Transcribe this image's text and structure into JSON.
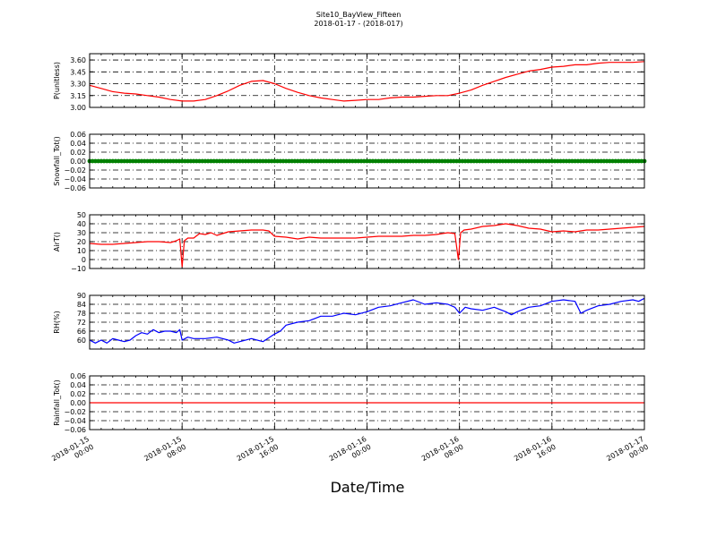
{
  "figure": {
    "title": "Site10_BayView_Fifteen",
    "subtitle": "2018-01-17 - (2018-017)",
    "xlabel": "Date/Time"
  },
  "x_ticks": [
    {
      "h": 0,
      "line1": "2018-01-15",
      "line2": "00:00"
    },
    {
      "h": 8,
      "line1": "2018-01-15",
      "line2": "08:00"
    },
    {
      "h": 16,
      "line1": "2018-01-15",
      "line2": "16:00"
    },
    {
      "h": 24,
      "line1": "2018-01-16",
      "line2": "00:00"
    },
    {
      "h": 32,
      "line1": "2018-01-16",
      "line2": "08:00"
    },
    {
      "h": 40,
      "line1": "2018-01-16",
      "line2": "16:00"
    },
    {
      "h": 48,
      "line1": "2018-01-17",
      "line2": "00:00"
    }
  ],
  "chart_data": [
    {
      "type": "line",
      "ylabel": "P(unitless)",
      "ylim": [
        3.0,
        3.68
      ],
      "yticks": [
        3.0,
        3.15,
        3.3,
        3.45,
        3.6
      ],
      "ytick_labels": [
        "3.00",
        "3.15",
        "3.30",
        "3.45",
        "3.60"
      ],
      "grid": true,
      "series": [
        {
          "color": "#ff0000",
          "style": "line",
          "x": [
            0,
            0.5,
            1,
            2,
            3,
            4,
            5,
            6,
            7,
            8,
            9,
            10,
            11,
            12,
            13,
            14,
            15,
            16,
            17,
            18,
            19,
            20,
            21,
            22,
            23,
            24,
            25,
            26,
            27,
            28,
            29,
            30,
            31,
            32,
            33,
            34,
            35,
            36,
            37,
            38,
            39,
            40,
            41,
            42,
            43,
            44,
            45,
            46,
            47,
            48
          ],
          "y": [
            3.28,
            3.26,
            3.24,
            3.2,
            3.18,
            3.17,
            3.15,
            3.13,
            3.1,
            3.08,
            3.08,
            3.1,
            3.15,
            3.21,
            3.28,
            3.33,
            3.34,
            3.3,
            3.24,
            3.19,
            3.15,
            3.12,
            3.1,
            3.08,
            3.09,
            3.1,
            3.1,
            3.12,
            3.13,
            3.13,
            3.14,
            3.15,
            3.15,
            3.18,
            3.22,
            3.28,
            3.33,
            3.38,
            3.42,
            3.46,
            3.48,
            3.51,
            3.52,
            3.54,
            3.54,
            3.56,
            3.57,
            3.57,
            3.57,
            3.58
          ]
        }
      ]
    },
    {
      "type": "scatter",
      "ylabel": "Snowfall_Tot()",
      "ylim": [
        -0.06,
        0.06
      ],
      "yticks": [
        -0.06,
        -0.04,
        -0.02,
        0.0,
        0.02,
        0.04,
        0.06
      ],
      "ytick_labels": [
        "−0.06",
        "−0.04",
        "−0.02",
        "0.00",
        "0.02",
        "0.04",
        "0.06"
      ],
      "grid": true,
      "series": [
        {
          "color": "#008000",
          "style": "dots",
          "x_start": 0,
          "x_end": 48,
          "x_step": 0.25,
          "constant": 0
        }
      ]
    },
    {
      "type": "line",
      "ylabel": "AirT()",
      "ylim": [
        -10,
        50
      ],
      "yticks": [
        -10,
        0,
        10,
        20,
        30,
        40,
        50
      ],
      "ytick_labels": [
        "−10",
        "0",
        "10",
        "20",
        "30",
        "40",
        "50"
      ],
      "grid": true,
      "series": [
        {
          "color": "#ff0000",
          "style": "line",
          "x": [
            0,
            1,
            2,
            3,
            4,
            5,
            6,
            7,
            7.5,
            7.8,
            8.0,
            8.2,
            8.5,
            9,
            9.5,
            10,
            10.5,
            11,
            12,
            13,
            14,
            15,
            15.5,
            16,
            17,
            18,
            19,
            20,
            21,
            22,
            23,
            24,
            25,
            26,
            27,
            28,
            29,
            30,
            31,
            31.6,
            31.9,
            32.1,
            32.4,
            33,
            34,
            35,
            36,
            37,
            38,
            39,
            40,
            41,
            42,
            43,
            44,
            45,
            46,
            47,
            48
          ],
          "y": [
            18,
            17,
            17,
            18,
            19,
            20,
            20,
            19,
            21,
            23,
            -8,
            21,
            24,
            24,
            29,
            28,
            30,
            27,
            31,
            32,
            33,
            33,
            32,
            26,
            25,
            23,
            25,
            24,
            24,
            24,
            24,
            25,
            26,
            26,
            26,
            27,
            27,
            28,
            30,
            29,
            0,
            30,
            33,
            34,
            37,
            38,
            40,
            38,
            35,
            34,
            31,
            32,
            31,
            33,
            33,
            34,
            35,
            36,
            37
          ]
        }
      ]
    },
    {
      "type": "line",
      "ylabel": "RH(%)",
      "ylim": [
        54,
        90
      ],
      "yticks": [
        60,
        66,
        72,
        78,
        84,
        90
      ],
      "ytick_labels": [
        "60",
        "66",
        "72",
        "78",
        "84",
        "90"
      ],
      "grid": true,
      "series": [
        {
          "color": "#0000ff",
          "style": "line",
          "x": [
            0,
            0.5,
            1,
            1.5,
            2,
            2.5,
            3,
            3.5,
            4,
            4.5,
            5,
            5.5,
            6,
            6.5,
            7,
            7.5,
            7.8,
            8,
            8.5,
            9,
            10,
            11,
            12,
            12.5,
            13,
            14,
            15,
            16,
            16.5,
            17,
            18,
            19,
            20,
            21,
            22,
            23,
            24,
            25,
            26,
            27,
            28,
            29,
            30,
            31,
            31.6,
            32,
            32.5,
            33,
            34,
            35,
            36,
            36.5,
            37,
            38,
            39,
            40,
            41,
            42,
            42.5,
            43,
            44,
            45,
            46,
            47,
            47.5,
            48
          ],
          "y": [
            60,
            58,
            60,
            58,
            61,
            60,
            59,
            60,
            63,
            65,
            64,
            67,
            65,
            66,
            66,
            65,
            67,
            60,
            62,
            61,
            61,
            62,
            60,
            58,
            59,
            61,
            59,
            64,
            66,
            70,
            72,
            73,
            76,
            76,
            78,
            77,
            79,
            82,
            83,
            85,
            87,
            84,
            85,
            84,
            82,
            78,
            82,
            81,
            80,
            82,
            79,
            77,
            79,
            82,
            83,
            86,
            87,
            86,
            78,
            80,
            83,
            84,
            86,
            87,
            86,
            88
          ]
        }
      ]
    },
    {
      "type": "line",
      "ylabel": "Rainfall_Tot()",
      "ylim": [
        -0.06,
        0.06
      ],
      "yticks": [
        -0.06,
        -0.04,
        -0.02,
        0.0,
        0.02,
        0.04,
        0.06
      ],
      "ytick_labels": [
        "−0.06",
        "−0.04",
        "−0.02",
        "0.00",
        "0.02",
        "0.04",
        "0.06"
      ],
      "grid": true,
      "series": [
        {
          "color": "#ff0000",
          "style": "line",
          "x": [
            0,
            48
          ],
          "y": [
            0,
            0
          ]
        }
      ]
    }
  ]
}
